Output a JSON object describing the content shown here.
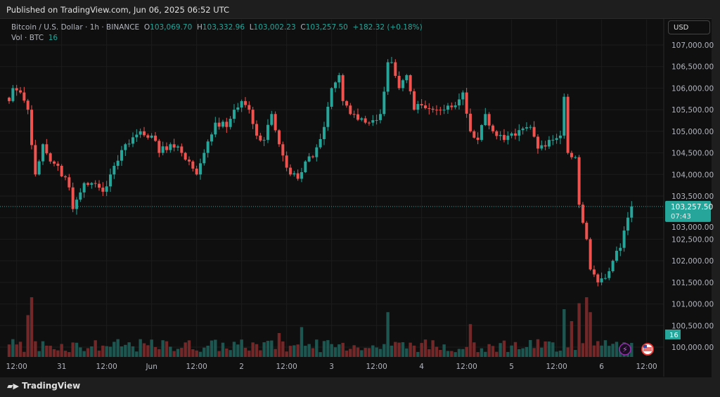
{
  "header": {
    "published": "Published on TradingView.com, Jun 06, 2025 06:52 UTC"
  },
  "legend": {
    "symbol": "Bitcoin / U.S. Dollar · 1h · BINANCE",
    "o_label": "O",
    "o": "103,069.70",
    "h_label": "H",
    "h": "103,332.96",
    "l_label": "L",
    "l": "103,002.23",
    "c_label": "C",
    "c": "103,257.50",
    "change": "+182.32 (+0.18%)",
    "vol_label": "Vol · BTC",
    "vol": "16"
  },
  "currency_button": "USD",
  "price_label": {
    "price": "103,257.50",
    "countdown": "07:43"
  },
  "volume_label": "16",
  "footer": {
    "brand": "TradingView"
  },
  "colors": {
    "up": "#26a69a",
    "down": "#ef5350",
    "bg": "#0f0f0f",
    "grid": "#1c1c1c",
    "text": "#b2b5be"
  },
  "chart_data": {
    "type": "candlestick",
    "interval": "1h",
    "ylim": [
      100000,
      107000
    ],
    "y_ticks": [
      100000,
      100500,
      101000,
      101500,
      102000,
      102500,
      103000,
      103500,
      104000,
      104500,
      105000,
      105500,
      106000,
      106500,
      107000
    ],
    "y_tick_labels": [
      "100,000.00",
      "100,500.00",
      "101,000.00",
      "101,500.00",
      "102,000.00",
      "102,500.00",
      "103,000.00",
      "103,500.00",
      "104,000.00",
      "104,500.00",
      "105,000.00",
      "105,500.00",
      "106,000.00",
      "106,500.00",
      "107,000.00"
    ],
    "x_tick_labels": [
      {
        "label": "12:00",
        "hour": 2
      },
      {
        "label": "31",
        "hour": 14
      },
      {
        "label": "12:00",
        "hour": 26
      },
      {
        "label": "Jun",
        "hour": 38
      },
      {
        "label": "12:00",
        "hour": 50
      },
      {
        "label": "2",
        "hour": 62
      },
      {
        "label": "12:00",
        "hour": 74
      },
      {
        "label": "3",
        "hour": 86
      },
      {
        "label": "12:00",
        "hour": 98
      },
      {
        "label": "4",
        "hour": 110
      },
      {
        "label": "12:00",
        "hour": 122
      },
      {
        "label": "5",
        "hour": 134
      },
      {
        "label": "12:00",
        "hour": 146
      },
      {
        "label": "6",
        "hour": 158
      },
      {
        "label": "12:00",
        "hour": 170
      }
    ],
    "last_price": 103257.5,
    "price_path": [
      [
        0,
        105700
      ],
      [
        1,
        106000
      ],
      [
        3,
        105900
      ],
      [
        5,
        105500
      ],
      [
        7,
        104000
      ],
      [
        9,
        104700
      ],
      [
        11,
        104300
      ],
      [
        13,
        104200
      ],
      [
        16,
        103700
      ],
      [
        17,
        103200
      ],
      [
        20,
        103800
      ],
      [
        22,
        103800
      ],
      [
        25,
        103600
      ],
      [
        28,
        104200
      ],
      [
        31,
        104700
      ],
      [
        35,
        105000
      ],
      [
        38,
        104900
      ],
      [
        40,
        104500
      ],
      [
        43,
        104700
      ],
      [
        46,
        104500
      ],
      [
        48,
        104300
      ],
      [
        50,
        104000
      ],
      [
        52,
        104500
      ],
      [
        55,
        105200
      ],
      [
        58,
        105100
      ],
      [
        60,
        105500
      ],
      [
        62,
        105700
      ],
      [
        64,
        105500
      ],
      [
        66,
        104900
      ],
      [
        68,
        104800
      ],
      [
        70,
        105400
      ],
      [
        72,
        104700
      ],
      [
        75,
        104000
      ],
      [
        77,
        103900
      ],
      [
        79,
        104300
      ],
      [
        81,
        104400
      ],
      [
        84,
        105100
      ],
      [
        86,
        106000
      ],
      [
        88,
        106300
      ],
      [
        89,
        105700
      ],
      [
        91,
        105400
      ],
      [
        94,
        105300
      ],
      [
        96,
        105200
      ],
      [
        99,
        105400
      ],
      [
        101,
        106600
      ],
      [
        102,
        106600
      ],
      [
        104,
        106000
      ],
      [
        106,
        106300
      ],
      [
        108,
        105500
      ],
      [
        110,
        105600
      ],
      [
        113,
        105500
      ],
      [
        116,
        105500
      ],
      [
        119,
        105600
      ],
      [
        121,
        105900
      ],
      [
        123,
        105000
      ],
      [
        125,
        104800
      ],
      [
        127,
        105400
      ],
      [
        129,
        105000
      ],
      [
        132,
        104800
      ],
      [
        135,
        104900
      ],
      [
        139,
        105100
      ],
      [
        141,
        104600
      ],
      [
        144,
        104800
      ],
      [
        147,
        104900
      ],
      [
        148,
        105800
      ],
      [
        149,
        104500
      ],
      [
        151,
        104400
      ],
      [
        152,
        103300
      ],
      [
        154,
        102500
      ],
      [
        155,
        101800
      ],
      [
        157,
        101500
      ],
      [
        159,
        101600
      ],
      [
        161,
        102000
      ],
      [
        163,
        102300
      ],
      [
        164,
        102700
      ],
      [
        165,
        103000
      ],
      [
        166,
        103257.5
      ]
    ],
    "volume_spikes": [
      [
        6,
        1.0
      ],
      [
        5,
        0.7
      ],
      [
        101,
        0.75
      ],
      [
        123,
        0.55
      ],
      [
        148,
        0.8
      ],
      [
        152,
        0.9
      ],
      [
        154,
        1.0
      ],
      [
        155,
        0.75
      ],
      [
        150,
        0.6
      ],
      [
        78,
        0.5
      ],
      [
        72,
        0.4
      ]
    ]
  }
}
